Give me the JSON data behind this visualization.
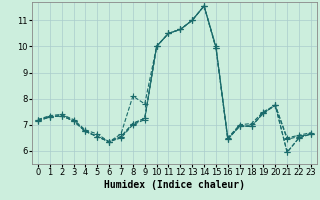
{
  "xlabel": "Humidex (Indice chaleur)",
  "background_color": "#cceedd",
  "grid_color": "#aacccc",
  "line_color": "#1a6b6b",
  "xlim": [
    -0.5,
    23.5
  ],
  "ylim": [
    5.5,
    11.7
  ],
  "xticks": [
    0,
    1,
    2,
    3,
    4,
    5,
    6,
    7,
    8,
    9,
    10,
    11,
    12,
    13,
    14,
    15,
    16,
    17,
    18,
    19,
    20,
    21,
    22,
    23
  ],
  "yticks": [
    6,
    7,
    8,
    9,
    10,
    11
  ],
  "series": [
    [
      7.2,
      7.35,
      7.4,
      7.2,
      6.8,
      6.65,
      6.35,
      6.5,
      7.0,
      7.2,
      10.0,
      10.5,
      10.65,
      11.0,
      11.55,
      10.0,
      6.5,
      7.0,
      7.05,
      7.5,
      7.75,
      6.5,
      6.6,
      6.7
    ],
    [
      7.15,
      7.3,
      7.35,
      7.15,
      6.75,
      6.55,
      6.35,
      6.65,
      8.1,
      7.8,
      10.0,
      10.5,
      10.65,
      11.0,
      11.55,
      9.95,
      6.45,
      6.95,
      6.95,
      7.45,
      7.75,
      6.45,
      6.55,
      6.65
    ],
    [
      7.2,
      7.3,
      7.35,
      7.15,
      6.75,
      6.55,
      6.35,
      6.55,
      7.05,
      7.25,
      10.0,
      10.5,
      10.65,
      11.0,
      11.55,
      9.95,
      6.45,
      6.95,
      6.95,
      7.45,
      7.75,
      5.95,
      6.5,
      6.65
    ],
    [
      7.15,
      7.3,
      7.35,
      7.15,
      6.75,
      6.55,
      6.35,
      6.55,
      7.05,
      7.25,
      10.0,
      10.5,
      10.65,
      11.0,
      11.55,
      9.95,
      6.45,
      6.95,
      6.95,
      7.45,
      7.75,
      5.95,
      6.5,
      6.65
    ]
  ],
  "marker": "+",
  "markersize": 4,
  "linewidth": 0.8,
  "linestyle": "--",
  "xlabel_fontsize": 7,
  "tick_fontsize": 6
}
